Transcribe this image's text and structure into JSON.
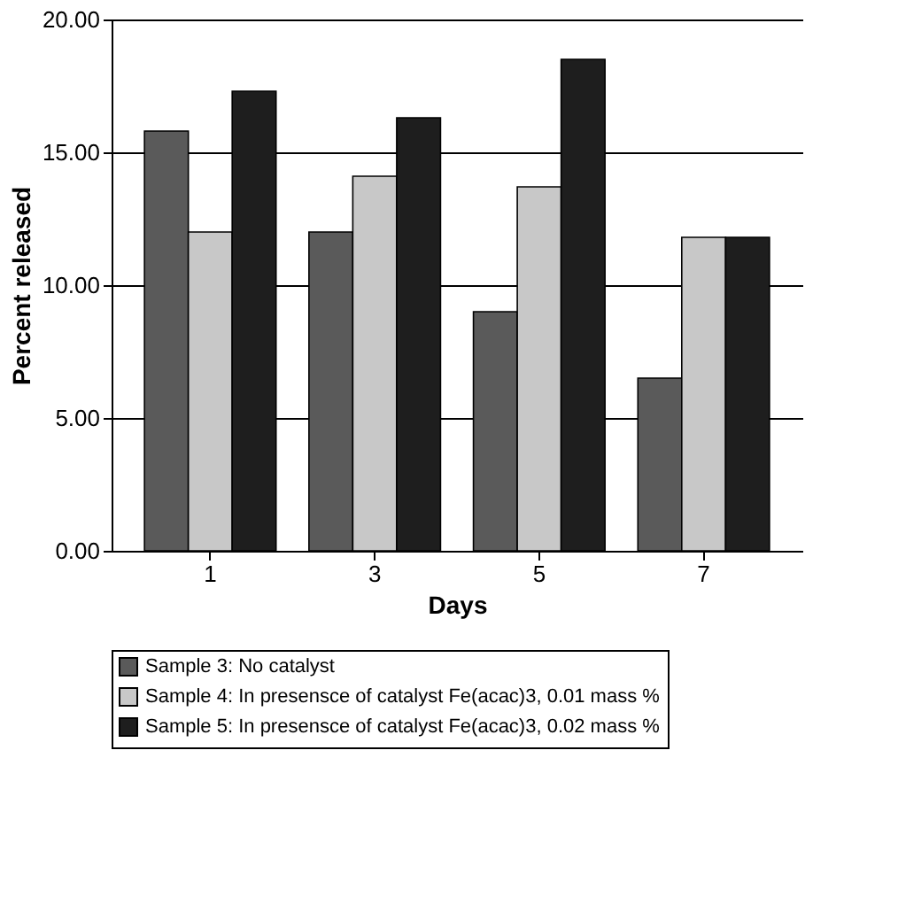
{
  "chart_data": {
    "type": "bar",
    "xlabel": "Days",
    "ylabel": "Percent released",
    "categories": [
      "1",
      "3",
      "5",
      "7"
    ],
    "series": [
      {
        "name": "Sample 3: No catalyst",
        "color": "#5a5a5a",
        "values": [
          15.8,
          12.0,
          9.0,
          6.5
        ]
      },
      {
        "name": "Sample 4: In presensce of catalyst Fe(acac)3, 0.01 mass %",
        "color": "#c8c8c8",
        "values": [
          12.0,
          14.1,
          13.7,
          11.8
        ]
      },
      {
        "name": "Sample 5: In presensce of catalyst Fe(acac)3, 0.02 mass %",
        "color": "#1e1e1e",
        "values": [
          17.3,
          16.3,
          18.5,
          11.8
        ]
      }
    ],
    "ylim": [
      0,
      20
    ],
    "yticks": [
      {
        "value": 0,
        "label": "0.00"
      },
      {
        "value": 5,
        "label": "5.00"
      },
      {
        "value": 10,
        "label": "10.00"
      },
      {
        "value": 15,
        "label": "15.00"
      },
      {
        "value": 20,
        "label": "20.00"
      }
    ],
    "grid": "y",
    "legend": "bottom"
  }
}
